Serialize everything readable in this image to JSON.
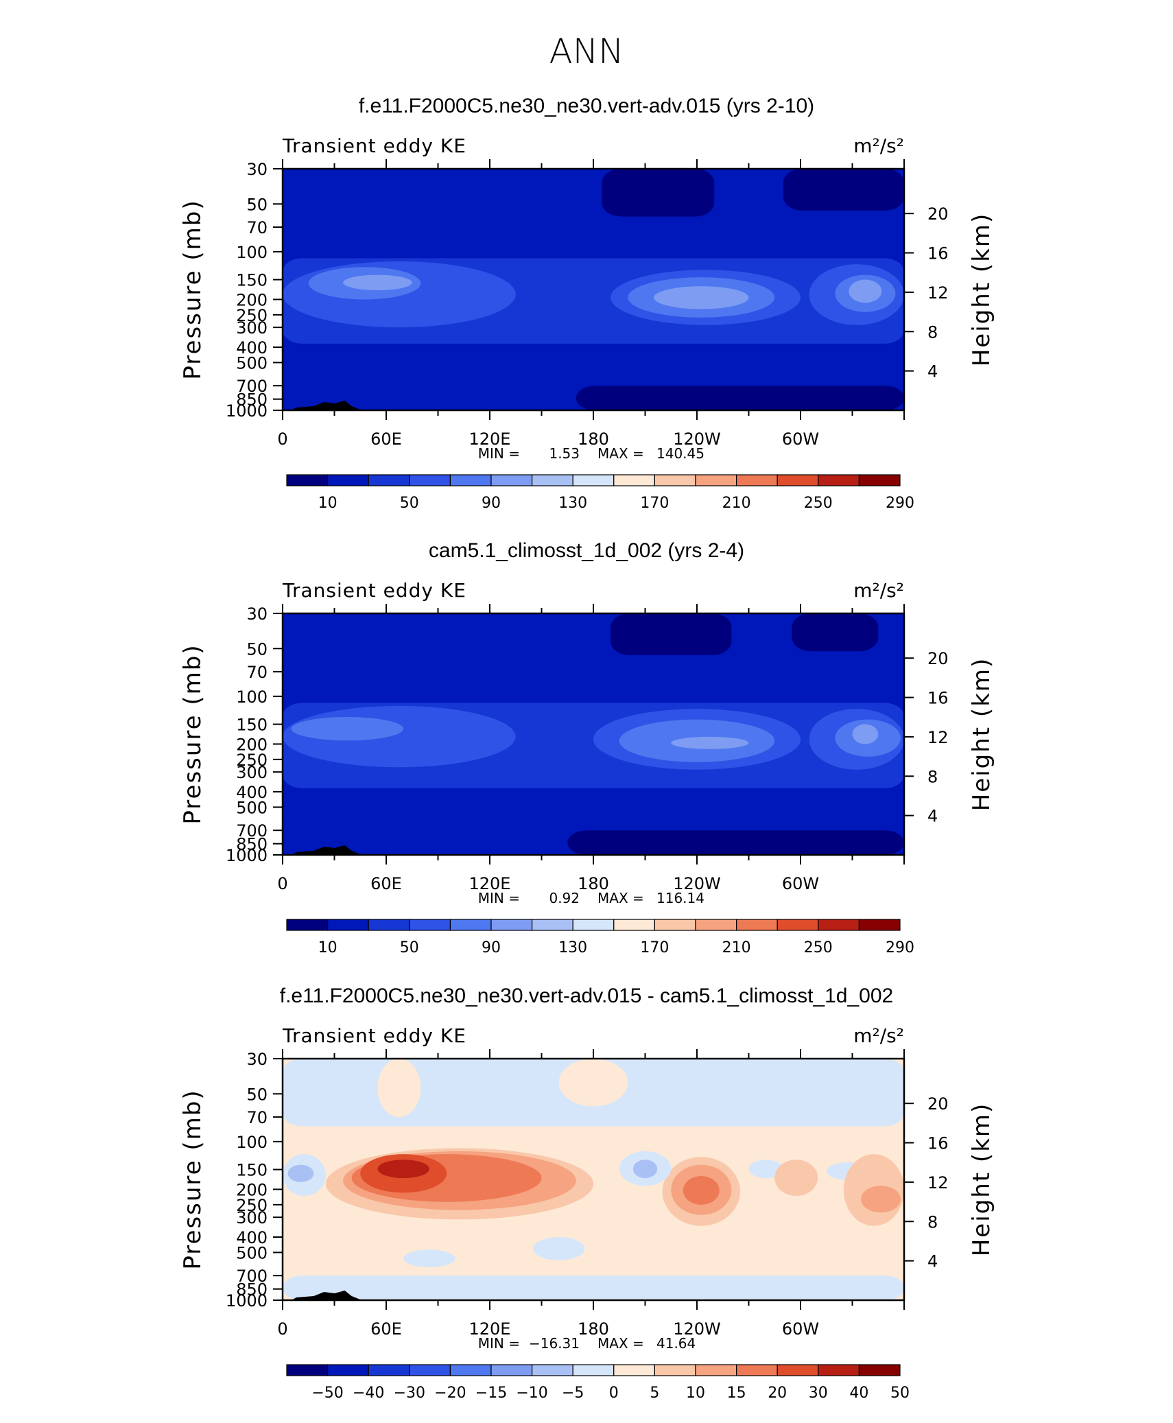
{
  "figure": {
    "title": "ANN"
  },
  "colors": {
    "abs_palette": [
      "#00007f",
      "#0017b9",
      "#1637d4",
      "#2f53e6",
      "#4f78f0",
      "#7d9cf2",
      "#a9c0f4",
      "#d6e6fa",
      "#fde9d6",
      "#f9c7a9",
      "#f5a380",
      "#ee7955",
      "#df4d2b",
      "#b71f14",
      "#870000"
    ],
    "diff_palette": [
      "#00007f",
      "#0017b9",
      "#1637d4",
      "#2f53e6",
      "#4f78f0",
      "#7d9cf2",
      "#a9c0f4",
      "#d6e6fa",
      "#fde9d6",
      "#f9c7a9",
      "#f5a380",
      "#ee7955",
      "#df4d2b",
      "#b71f14",
      "#870000"
    ]
  },
  "chart_data": [
    {
      "type": "heatmap",
      "title": "f.e11.F2000C5.ne30_ne30.vert-adv.015 (yrs 2-10)",
      "left_label": "Transient eddy KE",
      "right_label": "m²/s²",
      "ylabel": "Pressure  (mb)",
      "ylabel_right": "Height  (km)",
      "y_ticks": [
        "30",
        "50",
        "70",
        "100",
        "150",
        "200",
        "250",
        "300",
        "400",
        "500",
        "700",
        "850",
        "1000"
      ],
      "y_tick_values": [
        30,
        50,
        70,
        100,
        150,
        200,
        250,
        300,
        400,
        500,
        700,
        850,
        1000
      ],
      "height_ticks": [
        "20",
        "16",
        "12",
        "8",
        "4"
      ],
      "height_tick_values": [
        20,
        16,
        12,
        8,
        4
      ],
      "x_ticks": [
        "0",
        "60E",
        "120E",
        "180",
        "120W",
        "60W"
      ],
      "x_tick_values": [
        0,
        60,
        120,
        180,
        240,
        300
      ],
      "xlim": [
        0,
        360
      ],
      "ylim": [
        1000,
        30
      ],
      "stats": {
        "min_label": "MIN =",
        "min_value": "1.53",
        "max_label": "MAX =",
        "max_value": "140.45"
      },
      "colorbar_labels": [
        "10",
        "50",
        "90",
        "130",
        "170",
        "210",
        "250",
        "290"
      ],
      "colorbar_levels": [
        10,
        30,
        50,
        70,
        90,
        110,
        130,
        150,
        170,
        190,
        210,
        230,
        250,
        270,
        290
      ],
      "colorbar_label_values": [
        10,
        50,
        90,
        130,
        170,
        210,
        250,
        290
      ],
      "background_level": 1,
      "features": [
        {
          "kind": "band",
          "level": 2,
          "p_top": 110,
          "p_bot": 380,
          "lon": [
            0,
            360
          ]
        },
        {
          "kind": "band",
          "level": 0,
          "p_top": 700,
          "p_bot": 1000,
          "lon": [
            170,
            360
          ],
          "note": "near-surface minimum"
        },
        {
          "kind": "band",
          "level": 0,
          "p_top": 30,
          "p_bot": 60,
          "lon": [
            185,
            250
          ]
        },
        {
          "kind": "band",
          "level": 0,
          "p_top": 30,
          "p_bot": 55,
          "lon": [
            290,
            360
          ]
        },
        {
          "kind": "blob",
          "level": 3,
          "lon": [
            0,
            135
          ],
          "p": [
            115,
            300
          ]
        },
        {
          "kind": "blob",
          "level": 4,
          "lon": [
            15,
            80
          ],
          "p": [
            125,
            200
          ]
        },
        {
          "kind": "blob",
          "level": 5,
          "lon": [
            35,
            75
          ],
          "p": [
            140,
            175
          ]
        },
        {
          "kind": "blob",
          "level": 3,
          "lon": [
            190,
            300
          ],
          "p": [
            130,
            290
          ]
        },
        {
          "kind": "blob",
          "level": 4,
          "lon": [
            200,
            285
          ],
          "p": [
            145,
            260
          ]
        },
        {
          "kind": "blob",
          "level": 5,
          "lon": [
            215,
            270
          ],
          "p": [
            165,
            230
          ]
        },
        {
          "kind": "blob",
          "level": 3,
          "lon": [
            305,
            360
          ],
          "p": [
            120,
            290
          ]
        },
        {
          "kind": "blob",
          "level": 4,
          "lon": [
            320,
            355
          ],
          "p": [
            140,
            240
          ]
        },
        {
          "kind": "blob",
          "level": 5,
          "lon": [
            328,
            347
          ],
          "p": [
            150,
            210
          ]
        }
      ]
    },
    {
      "type": "heatmap",
      "title": "cam5.1_climosst_1d_002 (yrs 2-4)",
      "left_label": "Transient eddy KE",
      "right_label": "m²/s²",
      "ylabel": "Pressure  (mb)",
      "ylabel_right": "Height  (km)",
      "y_ticks": [
        "30",
        "50",
        "70",
        "100",
        "150",
        "200",
        "250",
        "300",
        "400",
        "500",
        "700",
        "850",
        "1000"
      ],
      "y_tick_values": [
        30,
        50,
        70,
        100,
        150,
        200,
        250,
        300,
        400,
        500,
        700,
        850,
        1000
      ],
      "height_ticks": [
        "20",
        "16",
        "12",
        "8",
        "4"
      ],
      "height_tick_values": [
        20,
        16,
        12,
        8,
        4
      ],
      "x_ticks": [
        "0",
        "60E",
        "120E",
        "180",
        "120W",
        "60W"
      ],
      "x_tick_values": [
        0,
        60,
        120,
        180,
        240,
        300
      ],
      "xlim": [
        0,
        360
      ],
      "ylim": [
        1000,
        30
      ],
      "stats": {
        "min_label": "MIN =",
        "min_value": "0.92",
        "max_label": "MAX =",
        "max_value": "116.14"
      },
      "colorbar_labels": [
        "10",
        "50",
        "90",
        "130",
        "170",
        "210",
        "250",
        "290"
      ],
      "colorbar_levels": [
        10,
        30,
        50,
        70,
        90,
        110,
        130,
        150,
        170,
        190,
        210,
        230,
        250,
        270,
        290
      ],
      "colorbar_label_values": [
        10,
        50,
        90,
        130,
        170,
        210,
        250,
        290
      ],
      "background_level": 1,
      "features": [
        {
          "kind": "band",
          "level": 2,
          "p_top": 110,
          "p_bot": 380,
          "lon": [
            0,
            360
          ]
        },
        {
          "kind": "band",
          "level": 0,
          "p_top": 700,
          "p_bot": 1000,
          "lon": [
            165,
            360
          ]
        },
        {
          "kind": "band",
          "level": 0,
          "p_top": 30,
          "p_bot": 55,
          "lon": [
            190,
            260
          ]
        },
        {
          "kind": "band",
          "level": 0,
          "p_top": 30,
          "p_bot": 52,
          "lon": [
            295,
            345
          ]
        },
        {
          "kind": "blob",
          "level": 3,
          "lon": [
            0,
            135
          ],
          "p": [
            115,
            280
          ]
        },
        {
          "kind": "blob",
          "level": 4,
          "lon": [
            5,
            70
          ],
          "p": [
            135,
            190
          ]
        },
        {
          "kind": "blob",
          "level": 3,
          "lon": [
            180,
            300
          ],
          "p": [
            120,
            290
          ]
        },
        {
          "kind": "blob",
          "level": 4,
          "lon": [
            195,
            285
          ],
          "p": [
            140,
            260
          ]
        },
        {
          "kind": "blob",
          "level": 5,
          "lon": [
            225,
            270
          ],
          "p": [
            180,
            215
          ]
        },
        {
          "kind": "blob",
          "level": 3,
          "lon": [
            305,
            360
          ],
          "p": [
            120,
            290
          ]
        },
        {
          "kind": "blob",
          "level": 4,
          "lon": [
            320,
            358
          ],
          "p": [
            140,
            240
          ]
        },
        {
          "kind": "blob",
          "level": 5,
          "lon": [
            330,
            345
          ],
          "p": [
            150,
            200
          ]
        }
      ]
    },
    {
      "type": "heatmap",
      "title": "f.e11.F2000C5.ne30_ne30.vert-adv.015 - cam5.1_climosst_1d_002",
      "left_label": "Transient eddy KE",
      "right_label": "m²/s²",
      "ylabel": "Pressure  (mb)",
      "ylabel_right": "Height  (km)",
      "y_ticks": [
        "30",
        "50",
        "70",
        "100",
        "150",
        "200",
        "250",
        "300",
        "400",
        "500",
        "700",
        "850",
        "1000"
      ],
      "y_tick_values": [
        30,
        50,
        70,
        100,
        150,
        200,
        250,
        300,
        400,
        500,
        700,
        850,
        1000
      ],
      "height_ticks": [
        "20",
        "16",
        "12",
        "8",
        "4"
      ],
      "height_tick_values": [
        20,
        16,
        12,
        8,
        4
      ],
      "x_ticks": [
        "0",
        "60E",
        "120E",
        "180",
        "120W",
        "60W"
      ],
      "x_tick_values": [
        0,
        60,
        120,
        180,
        240,
        300
      ],
      "xlim": [
        0,
        360
      ],
      "ylim": [
        1000,
        30
      ],
      "stats": {
        "min_label": "MIN =",
        "min_value": "-16.31",
        "max_label": "MAX =",
        "max_value": "41.64"
      },
      "colorbar_labels": [
        "-50",
        "-40",
        "-30",
        "-20",
        "-15",
        "-10",
        "-5",
        "0",
        "5",
        "10",
        "15",
        "20",
        "30",
        "40",
        "50"
      ],
      "colorbar_levels": [
        -50,
        -40,
        -30,
        -20,
        -15,
        -10,
        -5,
        0,
        5,
        10,
        15,
        20,
        30,
        40,
        50
      ],
      "colorbar_label_values": [
        -50,
        -40,
        -30,
        -20,
        -15,
        -10,
        -5,
        0,
        5,
        10,
        15,
        20,
        30,
        40,
        50
      ],
      "background_level": 8,
      "features": [
        {
          "kind": "band",
          "level": 7,
          "p_top": 30,
          "p_bot": 80,
          "lon": [
            0,
            360
          ]
        },
        {
          "kind": "band",
          "level": 7,
          "p_top": 700,
          "p_bot": 1000,
          "lon": [
            0,
            360
          ]
        },
        {
          "kind": "blob",
          "level": 8,
          "lon": [
            55,
            80
          ],
          "p": [
            30,
            70
          ]
        },
        {
          "kind": "blob",
          "level": 8,
          "lon": [
            160,
            200
          ],
          "p": [
            30,
            60
          ]
        },
        {
          "kind": "blob",
          "level": 9,
          "lon": [
            25,
            180
          ],
          "p": [
            110,
            310
          ]
        },
        {
          "kind": "blob",
          "level": 10,
          "lon": [
            35,
            170
          ],
          "p": [
            115,
            270
          ]
        },
        {
          "kind": "blob",
          "level": 11,
          "lon": [
            40,
            150
          ],
          "p": [
            120,
            240
          ]
        },
        {
          "kind": "blob",
          "level": 12,
          "lon": [
            45,
            95
          ],
          "p": [
            120,
            210
          ]
        },
        {
          "kind": "blob",
          "level": 13,
          "lon": [
            55,
            85
          ],
          "p": [
            130,
            170
          ]
        },
        {
          "kind": "blob",
          "level": 9,
          "lon": [
            220,
            265
          ],
          "p": [
            125,
            340
          ]
        },
        {
          "kind": "blob",
          "level": 10,
          "lon": [
            225,
            260
          ],
          "p": [
            140,
            290
          ]
        },
        {
          "kind": "blob",
          "level": 11,
          "lon": [
            232,
            253
          ],
          "p": [
            165,
            250
          ]
        },
        {
          "kind": "blob",
          "level": 7,
          "lon": [
            0,
            25
          ],
          "p": [
            120,
            220
          ]
        },
        {
          "kind": "blob",
          "level": 6,
          "lon": [
            3,
            18
          ],
          "p": [
            140,
            180
          ]
        },
        {
          "kind": "blob",
          "level": 7,
          "lon": [
            195,
            225
          ],
          "p": [
            115,
            190
          ]
        },
        {
          "kind": "blob",
          "level": 6,
          "lon": [
            203,
            217
          ],
          "p": [
            130,
            170
          ]
        },
        {
          "kind": "blob",
          "level": 7,
          "lon": [
            270,
            290
          ],
          "p": [
            130,
            170
          ]
        },
        {
          "kind": "blob",
          "level": 7,
          "lon": [
            315,
            340
          ],
          "p": [
            135,
            175
          ]
        },
        {
          "kind": "blob",
          "level": 9,
          "lon": [
            325,
            360
          ],
          "p": [
            120,
            340
          ]
        },
        {
          "kind": "blob",
          "level": 10,
          "lon": [
            335,
            358
          ],
          "p": [
            190,
            280
          ]
        },
        {
          "kind": "blob",
          "level": 9,
          "lon": [
            285,
            310
          ],
          "p": [
            130,
            220
          ]
        },
        {
          "kind": "blob",
          "level": 7,
          "lon": [
            145,
            175
          ],
          "p": [
            400,
            560
          ]
        },
        {
          "kind": "blob",
          "level": 7,
          "lon": [
            70,
            100
          ],
          "p": [
            480,
            620
          ]
        }
      ]
    }
  ]
}
